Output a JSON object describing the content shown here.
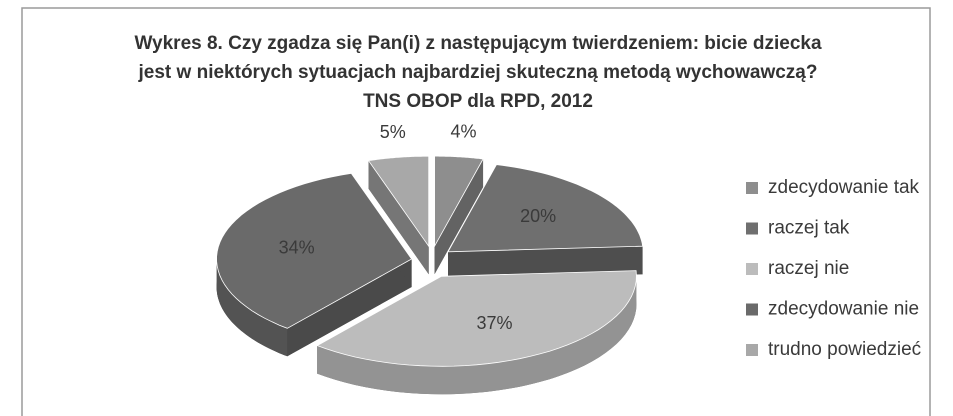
{
  "chart_data": {
    "type": "pie",
    "title": [
      "Wykres 8.  Czy zgadza się Pan(i) z następującym twierdzeniem: bicie dziecka",
      "jest w niektórych sytuacjach najbardziej skuteczną metodą wychowawczą?",
      "TNS OBOP dla RPD, 2012"
    ],
    "categories": [
      "zdecydowanie tak",
      "raczej tak",
      "raczej nie",
      "zdecydowanie nie",
      "trudno powiedzieć"
    ],
    "values": [
      4,
      20,
      37,
      34,
      5
    ],
    "value_labels": [
      "4%",
      "20%",
      "37%",
      "34%",
      "5%"
    ],
    "colors": [
      "#8e8e8e",
      "#6f6f6f",
      "#bcbcbc",
      "#6a6a6a",
      "#a8a8a8"
    ],
    "legend": "right"
  }
}
